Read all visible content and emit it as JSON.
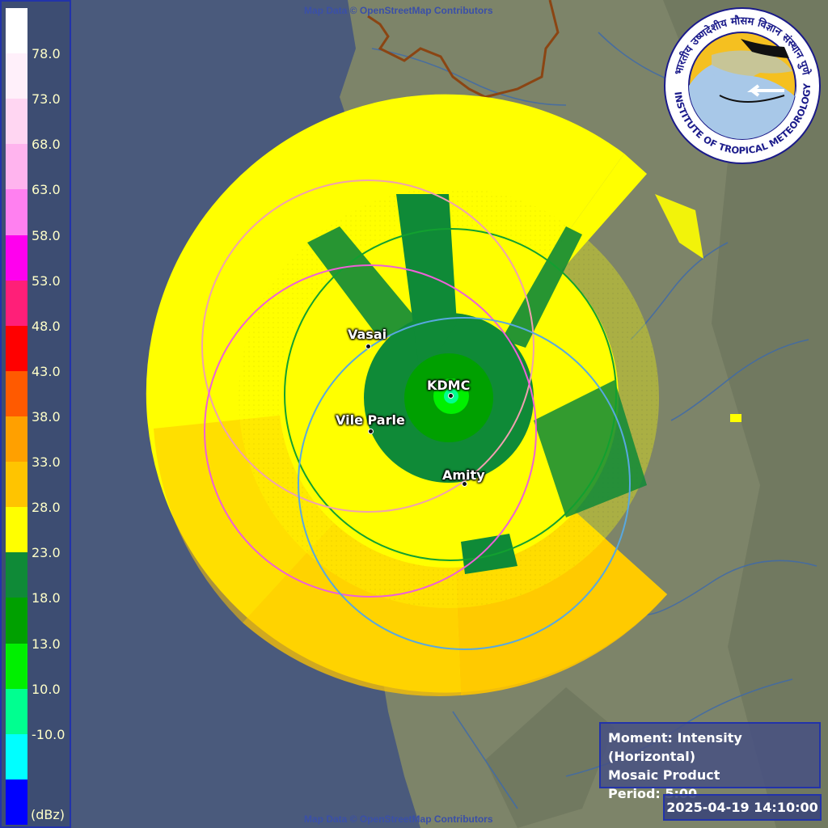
{
  "map": {
    "credit": "Map Data © OpenStreetMap Contributors",
    "colors": {
      "sea": "#4a5a7c",
      "land": "#7d8469"
    }
  },
  "legend": {
    "unit": "(dBz)",
    "ticks": [
      "78.0",
      "73.0",
      "68.0",
      "63.0",
      "58.0",
      "53.0",
      "48.0",
      "43.0",
      "38.0",
      "33.0",
      "28.0",
      "23.0",
      "18.0",
      "13.0",
      "10.0",
      "-10.0"
    ],
    "colors": [
      "#ffffff",
      "#fff0fa",
      "#ffd6f2",
      "#ffb4ee",
      "#ff80f0",
      "#ff00ee",
      "#ff1f78",
      "#ff0000",
      "#ff5a00",
      "#ffa000",
      "#ffc400",
      "#ffff00",
      "#0f8a37",
      "#00a000",
      "#00f000",
      "#00ff90",
      "#00ffff",
      "#0000ff"
    ]
  },
  "sites": [
    {
      "name": "Vasai"
    },
    {
      "name": "KDMC"
    },
    {
      "name": "Vile Parle"
    },
    {
      "name": "Amity"
    }
  ],
  "info": {
    "moment": "Moment: Intensity (Horizontal)",
    "product": "Mosaic Product",
    "period": "Period: 5:00"
  },
  "timestamp": "2025-04-19 14:10:00",
  "logo": {
    "text_top": "भारतीय उष्णदेशीय मौसम विज्ञान संस्थान पुणे",
    "text_bottom": "INDIAN INSTITUTE OF TROPICAL METEOROLOGY PUNE",
    "colors": {
      "ring": "#ffffff",
      "text": "#1a1a8a",
      "sky": "#f5c020",
      "sea": "#a8c8e8"
    }
  }
}
